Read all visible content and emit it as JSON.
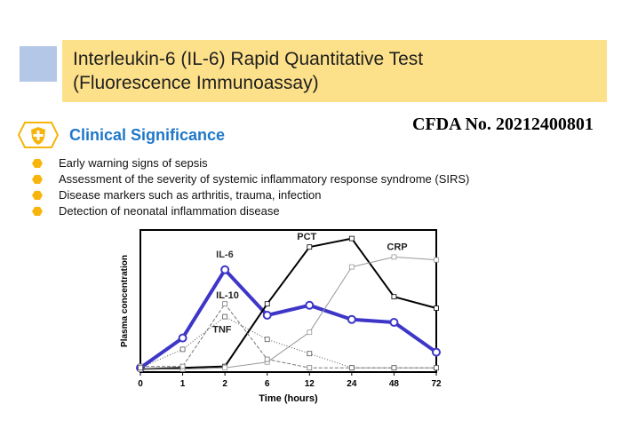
{
  "title": {
    "line1": "Interleukin-6 (IL-6) Rapid Quantitative Test",
    "line2": "(Fluorescence Immunoassay)"
  },
  "cfda": "CFDA No. 20212400801",
  "section_title": "Clinical Significance",
  "bullets": [
    "Early warning signs of sepsis",
    "Assessment of the severity of systemic inflammatory response syndrome (SIRS)",
    "Disease markers such as arthritis, trauma, infection",
    "Detection of neonatal inflammation disease"
  ],
  "colors": {
    "banner": "#fde18a",
    "accent_square": "#b4c7e7",
    "section_title": "#1f77c9",
    "bullet": "#f7b50c",
    "il6": "#3d36c8"
  },
  "icon": "shield-plus-icon",
  "chart_data": {
    "type": "line",
    "categories": [
      "0",
      "1",
      "2",
      "6",
      "12",
      "24",
      "48",
      "72"
    ],
    "xlabel": "Time (hours)",
    "ylabel": "Plasma concentration",
    "ylim": [
      0,
      100
    ],
    "grid": false,
    "series": [
      {
        "name": "IL-6",
        "values": [
          3,
          24,
          72,
          40,
          47,
          37,
          35,
          14
        ]
      },
      {
        "name": "PCT",
        "values": [
          2,
          3,
          4,
          48,
          88,
          94,
          53,
          45
        ]
      },
      {
        "name": "CRP",
        "values": [
          2,
          2,
          3,
          7,
          28,
          74,
          81,
          79
        ]
      },
      {
        "name": "IL-10",
        "values": [
          4,
          4,
          48,
          9,
          3,
          3,
          3,
          3
        ]
      },
      {
        "name": "TNF",
        "values": [
          3,
          16,
          39,
          23,
          13,
          3,
          3,
          3
        ]
      }
    ]
  }
}
